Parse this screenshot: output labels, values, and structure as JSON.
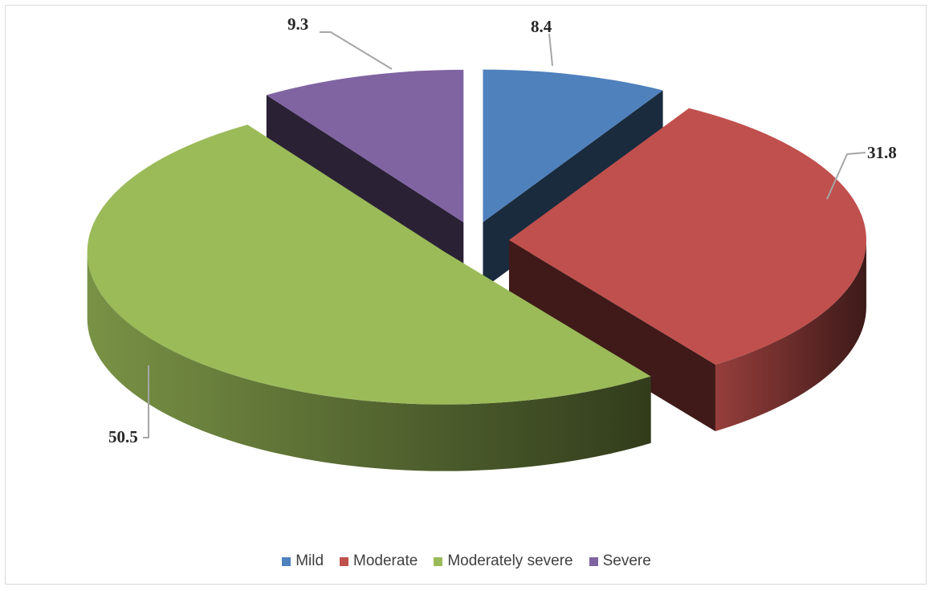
{
  "chart_data": {
    "type": "pie",
    "variant": "3d-exploded",
    "title": "",
    "categories": [
      "Mild",
      "Moderate",
      "Moderately severe",
      "Severe"
    ],
    "values": [
      8.4,
      31.8,
      50.5,
      9.3
    ],
    "labels": [
      "8.4",
      "31.8",
      "50.5",
      "9.3"
    ],
    "colors": [
      "#4f81bd",
      "#c0504d",
      "#9bbb59",
      "#8064a2"
    ],
    "legend_position": "bottom"
  }
}
